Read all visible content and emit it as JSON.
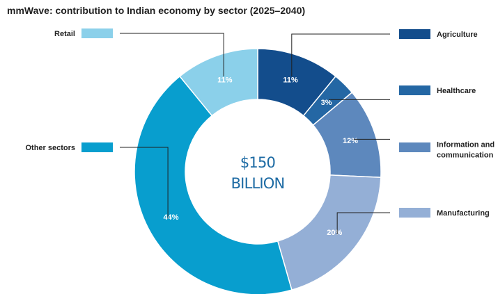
{
  "chart_data": {
    "type": "pie",
    "title": "mmWave: contribution to Indian economy by sector (2025–2040)",
    "center_label": [
      "$150",
      "BILLION"
    ],
    "center_color": "#1c6aa3",
    "slices": [
      {
        "name": "Agriculture",
        "value": 11,
        "label": "11%",
        "color": "#134d8c"
      },
      {
        "name": "Healthcare",
        "value": 3,
        "label": "3%",
        "color": "#2467a4"
      },
      {
        "name": "Information and communication",
        "value": 12,
        "label": "12%",
        "color": "#5d88bd"
      },
      {
        "name": "Manufacturing",
        "value": 20,
        "label": "20%",
        "color": "#94afd6"
      },
      {
        "name": "Other sectors",
        "value": 44,
        "label": "44%",
        "color": "#089ece"
      },
      {
        "name": "Retail",
        "value": 11,
        "label": "11%",
        "color": "#8bd0ea"
      }
    ]
  }
}
